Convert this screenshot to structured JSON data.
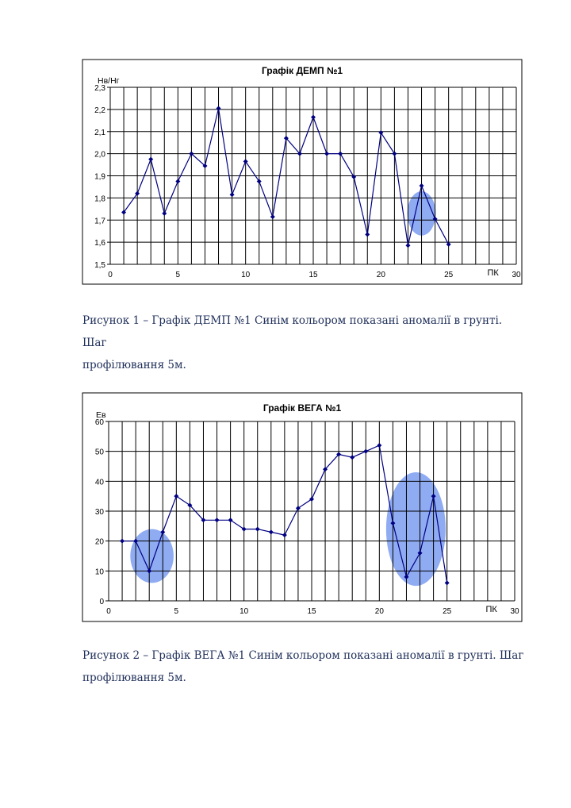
{
  "chart_data": [
    {
      "type": "line",
      "title": "Графік ДЕМП №1",
      "xlabel": "ПК",
      "ylabel": "Нв/Нг",
      "xlim": [
        0,
        30
      ],
      "ylim": [
        1.5,
        2.3
      ],
      "xticks": [
        "0",
        "5",
        "10",
        "15",
        "20",
        "25",
        "30"
      ],
      "yticks": [
        "1,5",
        "1,6",
        "1,7",
        "1,8",
        "1,9",
        "2,0",
        "2,1",
        "2,2",
        "2,3"
      ],
      "grid": true,
      "color": "#000080",
      "anomaly_color": "#7b9cf0",
      "x": [
        1,
        2,
        3,
        4,
        5,
        6,
        7,
        8,
        9,
        10,
        11,
        12,
        13,
        14,
        15,
        16,
        17,
        18,
        19,
        20,
        21,
        22,
        23,
        24,
        25
      ],
      "values": [
        1.735,
        1.82,
        1.975,
        1.73,
        1.875,
        2.0,
        1.945,
        2.205,
        1.815,
        1.965,
        1.875,
        1.715,
        2.07,
        2.0,
        2.165,
        2.0,
        2.0,
        1.895,
        1.635,
        2.095,
        2.0,
        1.585,
        1.855,
        1.705,
        1.59
      ],
      "anomalies": [
        {
          "x_center": 23,
          "y_center": 1.73
        }
      ]
    },
    {
      "type": "line",
      "title": "Графік ВЕГА №1",
      "xlabel": "ПК",
      "ylabel": "Ев",
      "xlim": [
        0,
        30
      ],
      "ylim": [
        0,
        60
      ],
      "xticks": [
        "0",
        "5",
        "10",
        "15",
        "20",
        "25",
        "30"
      ],
      "yticks": [
        "0",
        "10",
        "20",
        "30",
        "40",
        "50",
        "60"
      ],
      "grid": true,
      "color": "#000080",
      "anomaly_color": "#7b9cf0",
      "x": [
        1,
        2,
        3,
        4,
        5,
        6,
        7,
        8,
        9,
        10,
        11,
        12,
        13,
        14,
        15,
        16,
        17,
        18,
        19,
        20,
        21,
        22,
        23,
        24,
        25
      ],
      "values": [
        20,
        20,
        10,
        23,
        35,
        32,
        27,
        27,
        27,
        24,
        24,
        23,
        22,
        31,
        34,
        44,
        49,
        48,
        50,
        52,
        26,
        8,
        16,
        35,
        6
      ],
      "anomalies": [
        {
          "x_center": 3.2,
          "y_center": 15
        },
        {
          "x_center": 22.7,
          "y_center": 24
        }
      ]
    }
  ],
  "captions": [
    {
      "line1": "Рисунок 1 – Графік ДЕМП №1 Синім кольором показані аномалії в грунті. Шаг",
      "line2": "профілювання 5м."
    },
    {
      "line1": "Рисунок 2 – Графік ВЕГА №1 Синім кольором показані аномалії в грунті. Шаг",
      "line2": "профілювання 5м."
    }
  ]
}
